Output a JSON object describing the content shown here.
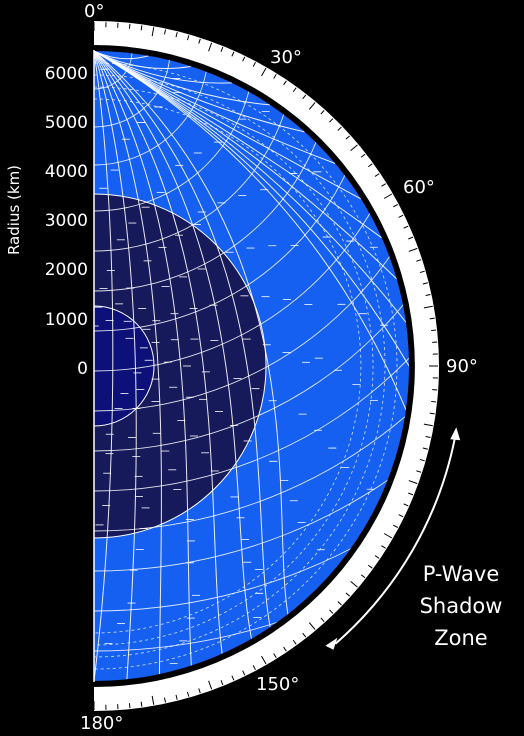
{
  "axis": {
    "title": "Radius (km)",
    "ticks": [
      "6000",
      "5000",
      "4000",
      "3000",
      "2000",
      "1000",
      "0"
    ]
  },
  "angles": [
    "0°",
    "30°",
    "60°",
    "90°",
    "150°",
    "180°"
  ],
  "shadow_zone": {
    "line1": "P-Wave",
    "line2": "Shadow",
    "line3": "Zone"
  },
  "colors": {
    "background": "#000000",
    "mantle": "#1560f0",
    "outer_core": "#171a5a",
    "inner_core": "#0c1078",
    "rays": "#ffffff",
    "rim": "#ffffff"
  }
}
